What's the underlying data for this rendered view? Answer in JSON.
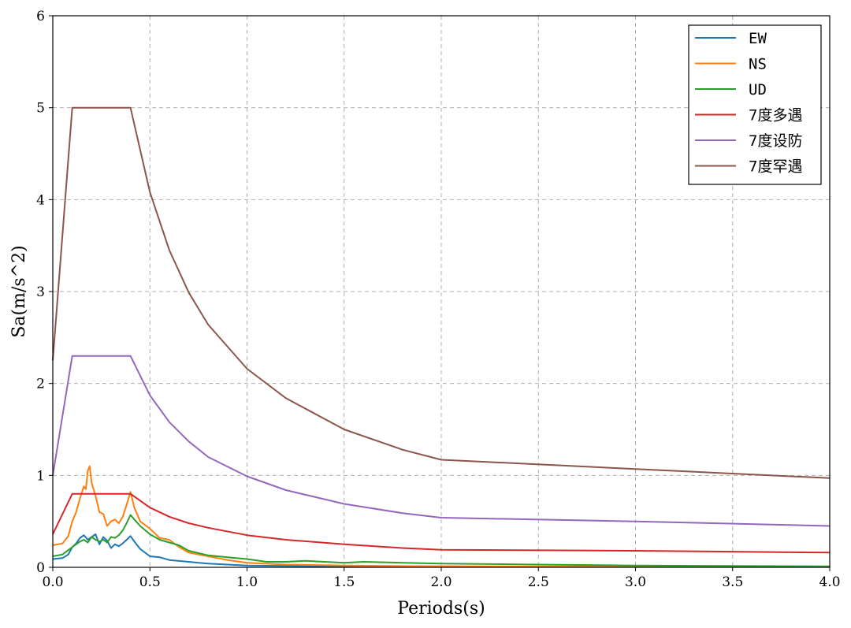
{
  "chart_data": {
    "type": "line",
    "xlabel": "Periods(s)",
    "ylabel": "Sa(m/s^2)",
    "xlim": [
      0,
      4.0
    ],
    "ylim": [
      0,
      6
    ],
    "xticks": [
      "0.0",
      "0.5",
      "1.0",
      "1.5",
      "2.0",
      "2.5",
      "3.0",
      "3.5",
      "4.0"
    ],
    "yticks": [
      "0",
      "1",
      "2",
      "3",
      "4",
      "5",
      "6"
    ],
    "grid": true,
    "legend_position": "top-right",
    "series": [
      {
        "name": "EW",
        "color": "#1f77b4",
        "x": [
          0,
          0.05,
          0.08,
          0.1,
          0.12,
          0.14,
          0.16,
          0.18,
          0.2,
          0.22,
          0.24,
          0.26,
          0.28,
          0.3,
          0.32,
          0.34,
          0.36,
          0.38,
          0.4,
          0.42,
          0.45,
          0.5,
          0.55,
          0.6,
          0.7,
          0.8,
          0.9,
          1.0,
          1.2,
          1.5,
          2.0,
          3.0,
          4.0
        ],
        "y": [
          0.09,
          0.1,
          0.14,
          0.22,
          0.26,
          0.32,
          0.35,
          0.3,
          0.33,
          0.36,
          0.25,
          0.33,
          0.29,
          0.21,
          0.25,
          0.23,
          0.26,
          0.3,
          0.34,
          0.28,
          0.2,
          0.12,
          0.11,
          0.08,
          0.06,
          0.04,
          0.03,
          0.02,
          0.015,
          0.01,
          0.01,
          0.005,
          0.005
        ]
      },
      {
        "name": "NS",
        "color": "#ff7f0e",
        "x": [
          0,
          0.05,
          0.08,
          0.1,
          0.12,
          0.14,
          0.16,
          0.17,
          0.18,
          0.19,
          0.2,
          0.22,
          0.24,
          0.26,
          0.28,
          0.3,
          0.32,
          0.34,
          0.36,
          0.38,
          0.4,
          0.42,
          0.45,
          0.5,
          0.55,
          0.6,
          0.65,
          0.7,
          0.8,
          0.9,
          1.0,
          1.2,
          1.5,
          2.0,
          3.0,
          4.0
        ],
        "y": [
          0.24,
          0.26,
          0.34,
          0.5,
          0.6,
          0.75,
          0.88,
          0.85,
          1.05,
          1.1,
          0.92,
          0.78,
          0.6,
          0.58,
          0.45,
          0.5,
          0.52,
          0.48,
          0.55,
          0.68,
          0.82,
          0.65,
          0.5,
          0.42,
          0.32,
          0.3,
          0.22,
          0.16,
          0.12,
          0.08,
          0.05,
          0.03,
          0.02,
          0.01,
          0.005,
          0.005
        ]
      },
      {
        "name": "UD",
        "color": "#2ca02c",
        "x": [
          0,
          0.05,
          0.1,
          0.12,
          0.14,
          0.16,
          0.18,
          0.2,
          0.22,
          0.24,
          0.26,
          0.28,
          0.3,
          0.32,
          0.34,
          0.36,
          0.38,
          0.4,
          0.42,
          0.45,
          0.5,
          0.55,
          0.6,
          0.65,
          0.7,
          0.8,
          0.9,
          1.0,
          1.1,
          1.2,
          1.3,
          1.4,
          1.5,
          1.6,
          1.8,
          2.0,
          2.5,
          3.0,
          3.5,
          4.0
        ],
        "y": [
          0.12,
          0.14,
          0.22,
          0.25,
          0.28,
          0.3,
          0.27,
          0.33,
          0.3,
          0.28,
          0.3,
          0.27,
          0.33,
          0.32,
          0.35,
          0.4,
          0.48,
          0.57,
          0.52,
          0.45,
          0.36,
          0.3,
          0.27,
          0.24,
          0.18,
          0.13,
          0.11,
          0.09,
          0.06,
          0.06,
          0.07,
          0.06,
          0.05,
          0.06,
          0.05,
          0.04,
          0.03,
          0.02,
          0.015,
          0.01
        ]
      },
      {
        "name": "7度多遇",
        "color": "#d62728",
        "x": [
          0,
          0.1,
          0.4,
          0.5,
          0.6,
          0.7,
          0.8,
          1.0,
          1.2,
          1.5,
          1.8,
          2.0,
          3.0,
          4.0
        ],
        "y": [
          0.36,
          0.8,
          0.8,
          0.65,
          0.55,
          0.48,
          0.43,
          0.35,
          0.3,
          0.25,
          0.21,
          0.19,
          0.18,
          0.16
        ]
      },
      {
        "name": "7度设防",
        "color": "#9467bd",
        "x": [
          0,
          0.1,
          0.4,
          0.5,
          0.6,
          0.7,
          0.8,
          1.0,
          1.2,
          1.5,
          1.8,
          2.0,
          3.0,
          4.0
        ],
        "y": [
          1.0,
          2.3,
          2.3,
          1.87,
          1.58,
          1.37,
          1.2,
          0.99,
          0.84,
          0.69,
          0.59,
          0.54,
          0.5,
          0.45
        ]
      },
      {
        "name": "7度罕遇",
        "color": "#8c564b",
        "x": [
          0,
          0.1,
          0.4,
          0.5,
          0.6,
          0.7,
          0.8,
          1.0,
          1.2,
          1.5,
          1.8,
          2.0,
          3.0,
          4.0
        ],
        "y": [
          2.25,
          5.0,
          5.0,
          4.08,
          3.45,
          2.99,
          2.64,
          2.16,
          1.84,
          1.5,
          1.28,
          1.17,
          1.07,
          0.97
        ]
      }
    ]
  }
}
